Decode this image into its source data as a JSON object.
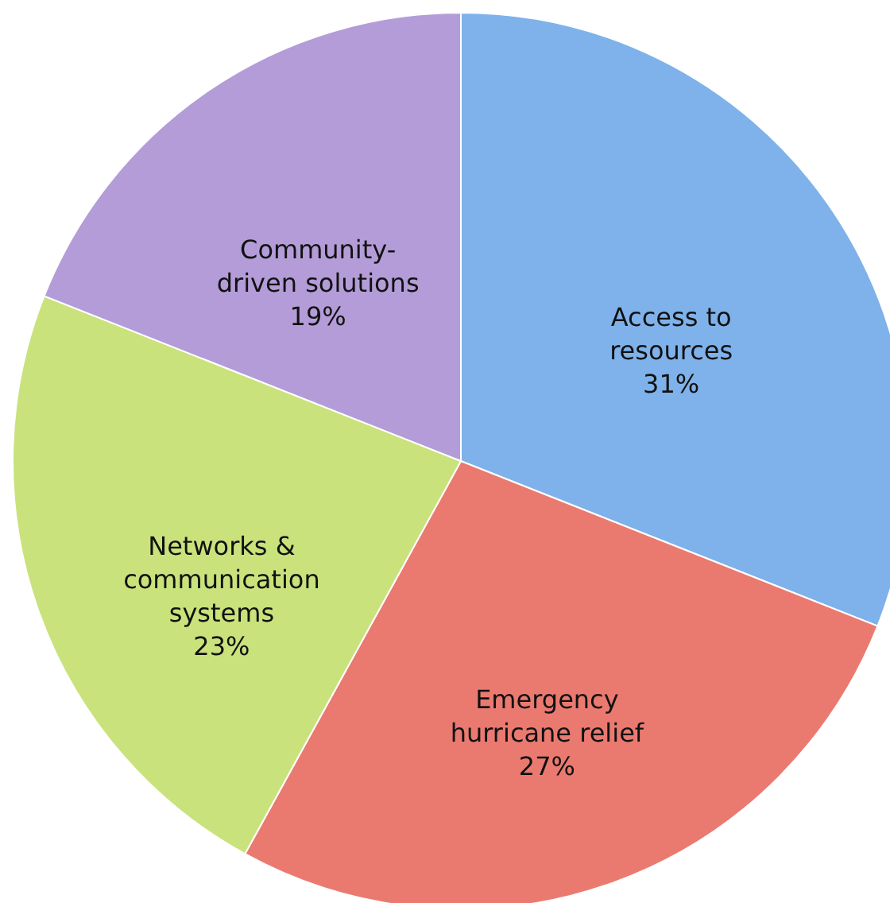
{
  "chart_data": {
    "type": "pie",
    "categories": [
      "Access to resources",
      "Emergency hurricane relief",
      "Networks & communication systems",
      "Community-driven solutions"
    ],
    "values": [
      31,
      27,
      23,
      19
    ],
    "value_labels": [
      "31%",
      "27%",
      "23%",
      "19%"
    ],
    "colors": [
      "#7fb2ea",
      "#ea7a70",
      "#c9e27c",
      "#b49cd8"
    ]
  }
}
